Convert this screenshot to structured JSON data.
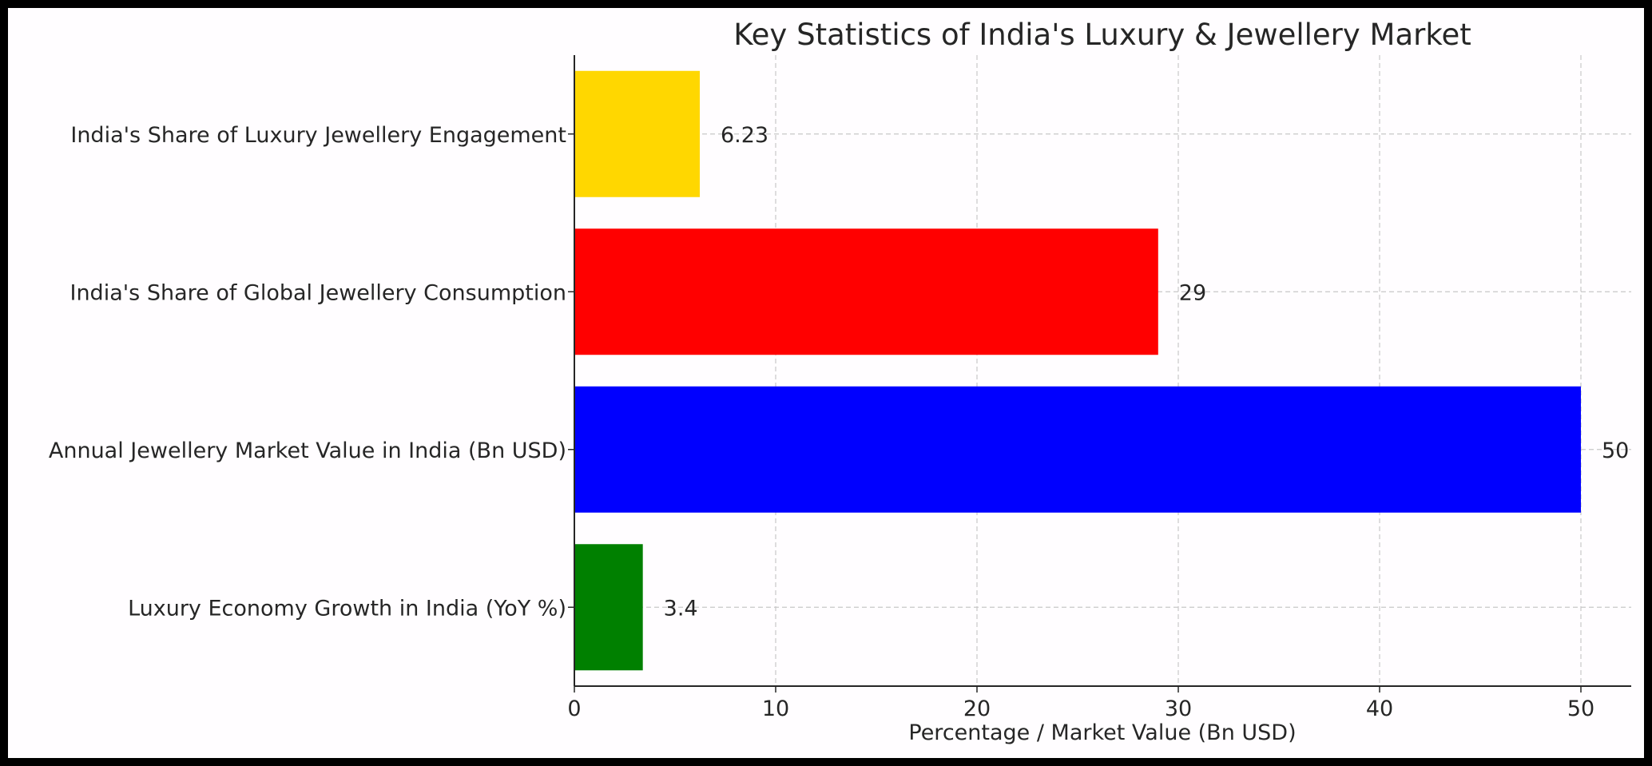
{
  "chart_data": {
    "type": "bar",
    "orientation": "horizontal",
    "title": "Key Statistics of India's Luxury & Jewellery Market",
    "xlabel": "Percentage / Market Value (Bn USD)",
    "ylabel": "",
    "xlim": [
      0,
      52.5
    ],
    "xticks": [
      0,
      10,
      20,
      30,
      40,
      50
    ],
    "grid": true,
    "categories": [
      "India's Share of Luxury Jewellery Engagement",
      "India's Share of Global Jewellery Consumption",
      "Annual Jewellery Market Value in India (Bn USD)",
      "Luxury Economy Growth in India (YoY %)"
    ],
    "values": [
      6.23,
      29,
      50,
      3.4
    ],
    "data_labels": [
      "6.23",
      "29",
      "50",
      "3.4"
    ],
    "colors": [
      "#FFD700",
      "#FF0000",
      "#0000FF",
      "#008000"
    ]
  }
}
